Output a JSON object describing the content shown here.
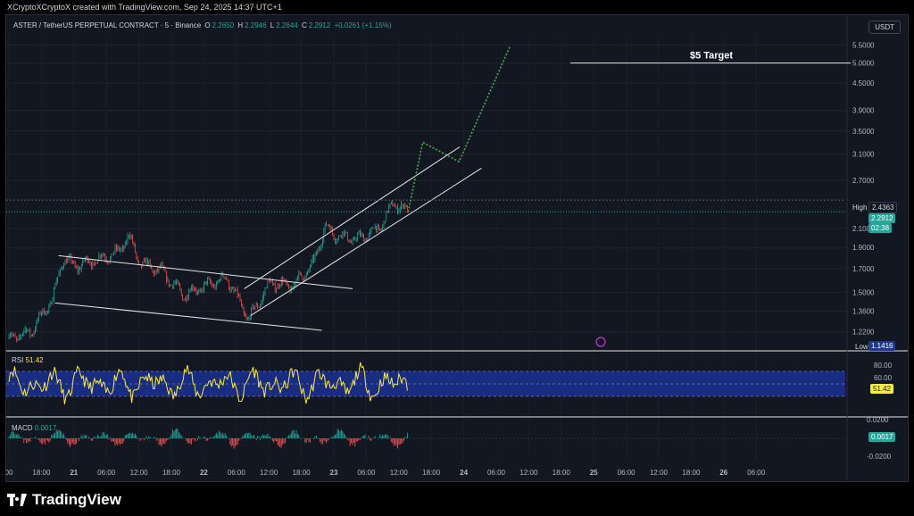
{
  "credit": "XCryptoXCryptoX created with TradingView.com, Sep 24, 2025 14:37 UTC+1",
  "header": {
    "symbol": "ASTER / TetherUS PERPETUAL CONTRACT · 5 · Binance",
    "o_label": "O",
    "o": "2.2650",
    "h_label": "H",
    "h": "2.2946",
    "l_label": "L",
    "l": "2.2644",
    "c_label": "C",
    "c": "2.2912",
    "change": "+0.0261 (+1.15%)"
  },
  "currency_button": "USDT",
  "price_axis": [
    "5.5000",
    "5.0000",
    "4.5000",
    "3.9000",
    "3.5000",
    "3.1000",
    "2.7000",
    "2.1000",
    "1.9000",
    "1.7000",
    "1.5000",
    "1.3600",
    "1.2200"
  ],
  "tags": {
    "high_label": "High",
    "high": "2.4363",
    "last": "2.2912",
    "countdown": "02:38",
    "low_label": "Low",
    "low": "1.1416"
  },
  "annotation": "$5 Target",
  "rsi": {
    "label": "RSI",
    "value": "51.42",
    "axis": [
      "80.00",
      "60.00",
      "40.00"
    ]
  },
  "macd": {
    "label": "MACD",
    "value": "0.0017",
    "axis": [
      "0.0200",
      "-0.0200"
    ]
  },
  "time_axis": [
    "00",
    "18:00",
    "21",
    "06:00",
    "12:00",
    "18:00",
    "22",
    "06:00",
    "12:00",
    "18:00",
    "23",
    "06:00",
    "12:00",
    "18:00",
    "24",
    "06:00",
    "12:00",
    "18:00",
    "25",
    "06:00",
    "12:00",
    "18:00",
    "26",
    "06:00"
  ],
  "brand": "TradingView",
  "colors": {
    "up": "#26a69a",
    "down": "#ef5350",
    "rsi_line": "#ffeb3b",
    "rsi_band": "#1a2f8c",
    "target_path": "#4caf50"
  },
  "chart_data": {
    "type": "line",
    "title": "ASTER / TetherUS PERPETUAL CONTRACT · 5 · Binance",
    "scale": "log",
    "ylim": [
      1.12,
      5.8
    ],
    "x_range": [
      "Sep 20 00:00",
      "Sep 26 06:00"
    ],
    "series": [
      {
        "name": "ASTER / TetherUS PERPETUAL CONTRACT",
        "x": [
          "Sep 20 00:00",
          "Sep 20 06:00",
          "Sep 20 12:00",
          "Sep 20 15:00",
          "Sep 20 18:00",
          "Sep 21 00:00",
          "Sep 21 06:00",
          "Sep 21 09:00",
          "Sep 21 12:00",
          "Sep 21 18:00",
          "Sep 22 00:00",
          "Sep 22 06:00",
          "Sep 22 12:00",
          "Sep 22 18:00",
          "Sep 23 00:00",
          "Sep 23 06:00",
          "Sep 23 12:00",
          "Sep 23 15:00",
          "Sep 23 18:00",
          "Sep 24 00:00",
          "Sep 24 06:00",
          "Sep 24 10:00",
          "Sep 24 14:00"
        ],
        "values": [
          1.18,
          1.22,
          1.45,
          1.8,
          1.72,
          1.78,
          1.85,
          2.02,
          1.75,
          1.68,
          1.48,
          1.55,
          1.62,
          1.3,
          1.58,
          1.55,
          1.75,
          2.12,
          2.03,
          1.98,
          2.1,
          2.4,
          2.29
        ]
      }
    ],
    "projection": {
      "x": [
        "Sep 24 14:00",
        "Sep 24 18:00",
        "Sep 25 04:00",
        "Sep 25 18:00"
      ],
      "values": [
        2.29,
        3.3,
        2.98,
        5.45
      ]
    },
    "target_level": 5.0,
    "high": 2.4363,
    "low": 1.1416,
    "last": 2.2912,
    "rsi": {
      "value": 51.42,
      "band": [
        30,
        70
      ],
      "axis_ticks": [
        80,
        60,
        40
      ]
    },
    "macd": {
      "value": 0.0017,
      "axis_ticks": [
        0.02,
        -0.02
      ]
    }
  }
}
